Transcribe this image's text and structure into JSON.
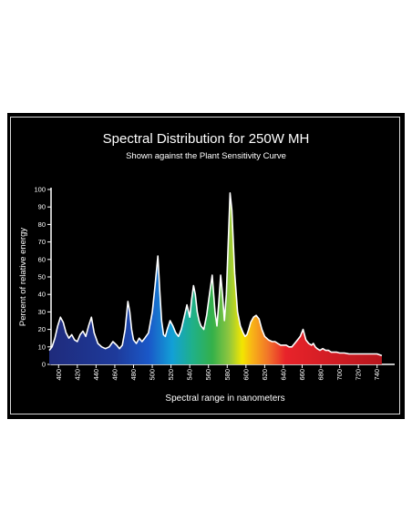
{
  "chart_data": {
    "type": "area",
    "title": "Spectral Distribution for 250W MH",
    "subtitle": "Shown against the Plant Sensitivity Curve",
    "xlabel": "Spectral range in nanometers",
    "ylabel": "Percent of relative energy",
    "xlim": [
      390,
      750
    ],
    "ylim": [
      0,
      100
    ],
    "xticks": [
      400,
      420,
      440,
      460,
      480,
      500,
      520,
      540,
      560,
      580,
      600,
      620,
      640,
      660,
      680,
      700,
      720,
      740
    ],
    "yticks": [
      0,
      10,
      20,
      30,
      40,
      50,
      60,
      70,
      80,
      90,
      100
    ],
    "grid": false,
    "legend": "none",
    "series": [
      {
        "x": [
          390,
          393,
          396,
          399,
          402,
          405,
          408,
          411,
          414,
          417,
          420,
          423,
          426,
          429,
          432,
          435,
          438,
          442,
          446,
          450,
          454,
          458,
          462,
          465,
          468,
          471,
          474,
          476,
          478,
          480,
          483,
          486,
          489,
          492,
          496,
          500,
          503,
          506,
          508,
          510,
          512,
          514,
          516,
          519,
          522,
          525,
          528,
          531,
          534,
          537,
          540,
          542,
          544,
          546,
          548,
          550,
          552,
          555,
          558,
          561,
          564,
          567,
          569,
          571,
          573,
          575,
          577,
          579,
          581,
          583,
          585,
          588,
          591,
          594,
          597,
          599,
          601,
          603,
          605,
          608,
          611,
          614,
          617,
          620,
          624,
          628,
          631,
          634,
          637,
          640,
          643,
          646,
          649,
          652,
          655,
          658,
          661,
          664,
          667,
          670,
          672,
          674,
          676,
          679,
          682,
          685,
          688,
          691,
          694,
          697,
          700,
          705,
          710,
          715,
          720,
          725,
          730,
          735,
          740,
          745
        ],
        "y": [
          8,
          10,
          15,
          22,
          27,
          24,
          18,
          15,
          17,
          14,
          13,
          17,
          19,
          16,
          22,
          27,
          18,
          12,
          10,
          9,
          10,
          13,
          11,
          9,
          11,
          20,
          36,
          30,
          20,
          14,
          12,
          15,
          13,
          15,
          18,
          30,
          45,
          62,
          42,
          25,
          17,
          16,
          20,
          25,
          22,
          18,
          16,
          20,
          27,
          34,
          27,
          37,
          45,
          40,
          30,
          25,
          22,
          20,
          28,
          40,
          51,
          30,
          22,
          35,
          51,
          40,
          25,
          40,
          68,
          98,
          88,
          52,
          30,
          22,
          18,
          16,
          17,
          20,
          24,
          27,
          28,
          26,
          20,
          16,
          14,
          13,
          13,
          12,
          11,
          11,
          11,
          10,
          10,
          12,
          14,
          16,
          20,
          14,
          12,
          11,
          12,
          10,
          9,
          8,
          9,
          8,
          8,
          7,
          7,
          7,
          6.5,
          6.5,
          6,
          6,
          6,
          6,
          6,
          6,
          6,
          5
        ]
      }
    ]
  }
}
